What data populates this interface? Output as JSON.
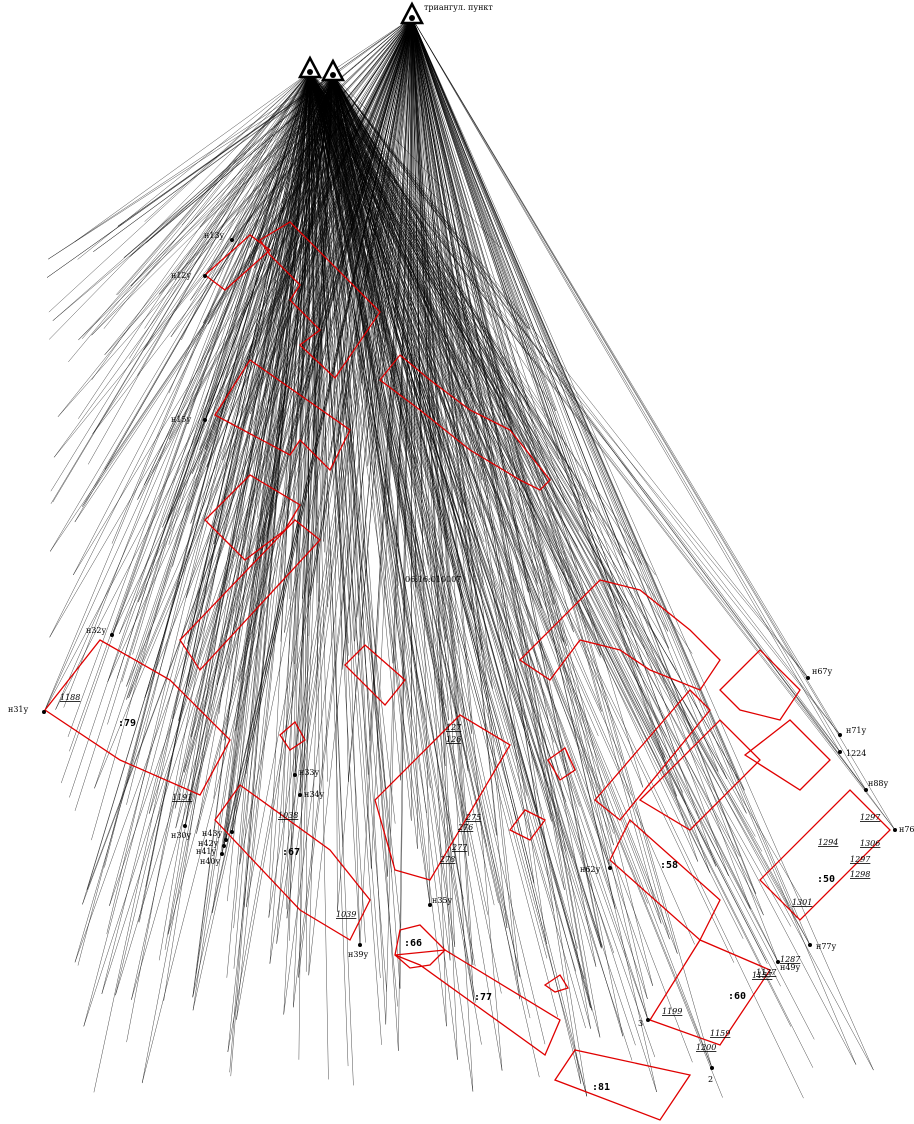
{
  "stations": [
    {
      "id": "station-main",
      "label": "триангул. пункт"
    },
    {
      "id": "station-a",
      "label": ""
    },
    {
      "id": "station-b",
      "label": ""
    }
  ],
  "points": [
    {
      "id": "p-n13y",
      "label": "н13у"
    },
    {
      "id": "p-n12y",
      "label": "н12у"
    },
    {
      "id": "p-n15y",
      "label": "н15у"
    },
    {
      "id": "p-n31y",
      "label": "н31у"
    },
    {
      "id": "p-n32y",
      "label": "н32у"
    },
    {
      "id": "p-n30y",
      "label": "н30у"
    },
    {
      "id": "p-n43y",
      "label": "н43у"
    },
    {
      "id": "p-n42y",
      "label": "н42у"
    },
    {
      "id": "p-n41y",
      "label": "н41у"
    },
    {
      "id": "p-n40y",
      "label": "н40у"
    },
    {
      "id": "p-n33y",
      "label": "н33у"
    },
    {
      "id": "p-n34y",
      "label": "н34у"
    },
    {
      "id": "p-n39y",
      "label": "н39у"
    },
    {
      "id": "p-n35y",
      "label": "н35у"
    },
    {
      "id": "p-n62y",
      "label": "н62у"
    },
    {
      "id": "p-n67y",
      "label": "н67у"
    },
    {
      "id": "p-n71y",
      "label": "н71у"
    },
    {
      "id": "p-n88y",
      "label": "н88у"
    },
    {
      "id": "p-n76",
      "label": "н76"
    },
    {
      "id": "p-n77y",
      "label": "н77у"
    },
    {
      "id": "p-n49y",
      "label": "н49у"
    },
    {
      "id": "p-2",
      "label": "2"
    },
    {
      "id": "p-3",
      "label": "3"
    },
    {
      "id": "p-1224",
      "label": "1224"
    }
  ],
  "parcels": [
    {
      "id": "parcel-79",
      "label": ":79"
    },
    {
      "id": "parcel-67",
      "label": ":67"
    },
    {
      "id": "parcel-66",
      "label": ":66"
    },
    {
      "id": "parcel-77",
      "label": ":77"
    },
    {
      "id": "parcel-81",
      "label": ":81"
    },
    {
      "id": "parcel-50",
      "label": ":50"
    },
    {
      "id": "parcel-60",
      "label": ":60"
    },
    {
      "id": "parcel-58",
      "label": ":58"
    }
  ],
  "annotations": [
    {
      "id": "ann-1188",
      "label": "1188"
    },
    {
      "id": "ann-1191",
      "label": "1191"
    },
    {
      "id": "ann-1039",
      "label": "1039"
    },
    {
      "id": "ann-1038",
      "label": "1038"
    },
    {
      "id": "ann-1297",
      "label": "1297"
    },
    {
      "id": "ann-1159",
      "label": "1159"
    },
    {
      "id": "ann-1157",
      "label": "1157"
    },
    {
      "id": "ann-1287",
      "label": "1287"
    },
    {
      "id": "ann-1301",
      "label": "1301"
    },
    {
      "id": "ann-1137",
      "label": "1137"
    },
    {
      "id": "ann-275",
      "label": "275"
    },
    {
      "id": "ann-276",
      "label": "276"
    },
    {
      "id": "ann-277",
      "label": "277"
    },
    {
      "id": "ann-278",
      "label": "278"
    },
    {
      "id": "ann-1298",
      "label": "1298"
    },
    {
      "id": "ann-1294",
      "label": "1294"
    },
    {
      "id": "ann-1199",
      "label": "1199"
    },
    {
      "id": "ann-1200",
      "label": "1200"
    },
    {
      "id": "ann-127",
      "label": "127"
    },
    {
      "id": "ann-126",
      "label": "126"
    },
    {
      "id": "ann-1306",
      "label": "1306"
    },
    {
      "id": "ann-1297b",
      "label": "1297"
    }
  ],
  "center_label": "06:16:010007",
  "colors": {
    "boundary": "#e00000",
    "rays": "#000000",
    "background": "#ffffff"
  }
}
